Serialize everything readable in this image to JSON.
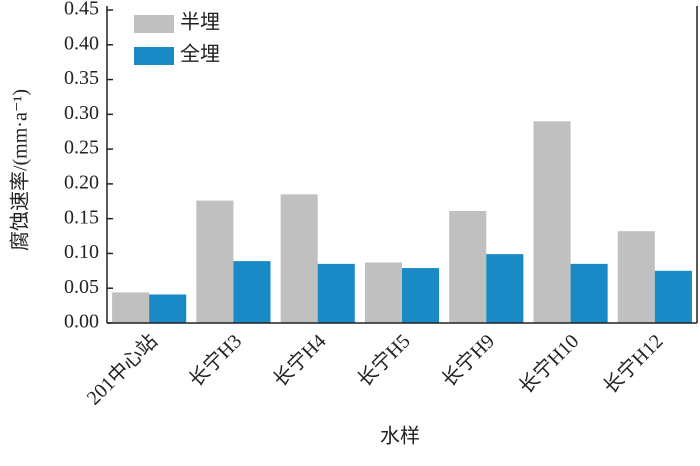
{
  "chart_data": {
    "type": "bar",
    "categories": [
      "201中心站",
      "长宁H3",
      "长宁H4",
      "长宁H5",
      "长宁H9",
      "长宁H10",
      "长宁H12"
    ],
    "series": [
      {
        "name": "半埋",
        "color": "#c0c0c0",
        "values": [
          0.044,
          0.176,
          0.185,
          0.087,
          0.161,
          0.29,
          0.132
        ]
      },
      {
        "name": "全埋",
        "color": "#1a8ac6",
        "values": [
          0.041,
          0.089,
          0.085,
          0.079,
          0.099,
          0.085,
          0.075
        ]
      }
    ],
    "ylim": [
      0,
      0.45
    ],
    "yticks": [
      {
        "value": 0,
        "label": "0.00"
      },
      {
        "value": 0.05,
        "label": "0.05"
      },
      {
        "value": 0.1,
        "label": "0.10"
      },
      {
        "value": 0.15,
        "label": "0.15"
      },
      {
        "value": 0.2,
        "label": "0.20"
      },
      {
        "value": 0.25,
        "label": "0.25"
      },
      {
        "value": 0.3,
        "label": "0.30"
      },
      {
        "value": 0.35,
        "label": "0.35"
      },
      {
        "value": 0.4,
        "label": "0.40"
      },
      {
        "value": 0.45,
        "label": "0.45"
      }
    ],
    "y_label": "腐蚀速率/(mm·a⁻¹)",
    "x_label": "水样",
    "legend": "upper left"
  }
}
